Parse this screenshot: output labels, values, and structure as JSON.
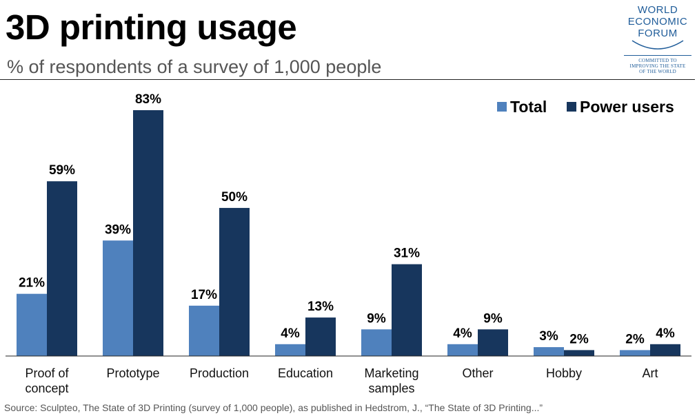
{
  "header": {
    "title": "3D printing usage",
    "subtitle": "% of respondents of a survey of 1,000 people"
  },
  "logo": {
    "line1": "WORLD",
    "line2": "ECONOMIC",
    "line3": "FORUM",
    "tagline1": "COMMITTED TO",
    "tagline2": "IMPROVING THE STATE",
    "tagline3": "OF THE WORLD"
  },
  "colors": {
    "total": "#4f81bd",
    "power": "#17365d",
    "brand": "#1f5c99"
  },
  "chart_data": {
    "type": "bar",
    "title": "3D printing usage",
    "subtitle": "% of respondents of a survey of 1,000 people",
    "xlabel": "",
    "ylabel": "",
    "ylim": [
      0,
      83
    ],
    "grid": false,
    "legend": "top-right",
    "unit": "%",
    "categories": [
      [
        "Proof of",
        "concept"
      ],
      [
        "Prototype"
      ],
      [
        "Production"
      ],
      [
        "Education"
      ],
      [
        "Marketing",
        "samples"
      ],
      [
        "Other"
      ],
      [
        "Hobby"
      ],
      [
        "Art"
      ]
    ],
    "series": [
      {
        "name": "Total",
        "values": [
          21,
          39,
          17,
          4,
          9,
          4,
          3,
          2
        ]
      },
      {
        "name": "Power users",
        "values": [
          59,
          83,
          50,
          13,
          31,
          9,
          2,
          4
        ]
      }
    ]
  },
  "footer": {
    "source": "Source: Sculpteo, The State of 3D Printing (survey of 1,000 people), as published in Hedstrom, J., “The State of 3D Printing...”"
  }
}
